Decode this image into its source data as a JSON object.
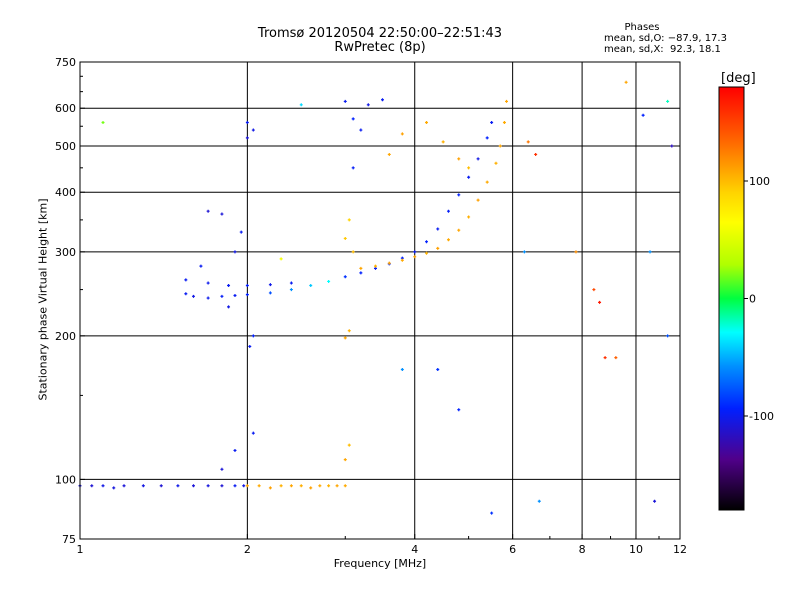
{
  "chart_data": {
    "type": "scatter",
    "title": "Tromsø 20120504 22:50:00–22:51:43",
    "subtitle": "RwPretec (8p)",
    "xlabel": "Frequency [MHz]",
    "ylabel": "Stationary phase Virtual Height [km]",
    "x_scale": "log",
    "y_scale": "log",
    "xlim": [
      1,
      12
    ],
    "ylim": [
      75,
      750
    ],
    "x_ticks": [
      {
        "v": 1,
        "label": "1"
      },
      {
        "v": 2,
        "label": "2"
      },
      {
        "v": 4,
        "label": "4"
      },
      {
        "v": 6,
        "label": "6"
      },
      {
        "v": 8,
        "label": "8"
      },
      {
        "v": 10,
        "label": "10"
      },
      {
        "v": 12,
        "label": "12"
      }
    ],
    "x_grid": [
      2,
      4,
      6,
      8,
      10
    ],
    "y_ticks": [
      {
        "v": 75,
        "label": "75"
      },
      {
        "v": 100,
        "label": "100"
      },
      {
        "v": 200,
        "label": "200"
      },
      {
        "v": 300,
        "label": "300"
      },
      {
        "v": 400,
        "label": "400"
      },
      {
        "v": 500,
        "label": "500"
      },
      {
        "v": 600,
        "label": "600"
      },
      {
        "v": 750,
        "label": "750"
      }
    ],
    "y_grid": [
      100,
      200,
      300,
      400,
      500,
      600
    ],
    "grid": true,
    "phases_box": {
      "heading": "Phases",
      "line1": "mean, sd,O: −87.9, 17.3",
      "line2": "mean, sd,X:  92.3, 18.1"
    },
    "colorbar": {
      "label": "[deg]",
      "vmin": -180,
      "vmax": 180,
      "ticks": [
        {
          "v": 100,
          "label": "100"
        },
        {
          "v": 0,
          "label": "0"
        },
        {
          "v": -100,
          "label": "-100"
        }
      ],
      "colormap": "rainbow"
    },
    "series": [
      {
        "role": "E-layer O trace",
        "points": [
          [
            1.0,
            97,
            -110
          ],
          [
            1.05,
            97,
            -112
          ],
          [
            1.1,
            97,
            -105
          ],
          [
            1.15,
            96,
            -108
          ],
          [
            1.2,
            97,
            -110
          ],
          [
            1.3,
            97,
            -106
          ],
          [
            1.4,
            97,
            -112
          ],
          [
            1.5,
            97,
            -104
          ],
          [
            1.6,
            97,
            -110
          ],
          [
            1.7,
            97,
            -108
          ],
          [
            1.8,
            97,
            -112
          ],
          [
            1.9,
            97,
            -100
          ],
          [
            1.97,
            97,
            -105
          ]
        ]
      },
      {
        "role": "E-layer X trace",
        "points": [
          [
            2.0,
            97,
            110
          ],
          [
            2.1,
            97,
            108
          ],
          [
            2.2,
            96,
            112
          ],
          [
            2.3,
            97,
            105
          ],
          [
            2.4,
            97,
            110
          ],
          [
            2.5,
            97,
            106
          ],
          [
            2.6,
            96,
            112
          ],
          [
            2.7,
            97,
            108
          ],
          [
            2.8,
            97,
            104
          ],
          [
            2.9,
            97,
            110
          ],
          [
            3.0,
            97,
            108
          ]
        ]
      },
      {
        "role": "F-layer O trace",
        "points": [
          [
            1.55,
            245,
            -100
          ],
          [
            1.6,
            242,
            -105
          ],
          [
            1.7,
            240,
            -102
          ],
          [
            1.8,
            242,
            -98
          ],
          [
            1.9,
            243,
            -100
          ],
          [
            2.0,
            244,
            -95
          ],
          [
            2.2,
            246,
            -80
          ],
          [
            2.4,
            250,
            -60
          ],
          [
            2.6,
            255,
            -45
          ],
          [
            2.8,
            260,
            -30
          ],
          [
            3.0,
            266,
            -90
          ],
          [
            3.2,
            271,
            -95
          ],
          [
            3.4,
            277,
            -100
          ],
          [
            3.6,
            283,
            -92
          ],
          [
            3.8,
            291,
            -95
          ],
          [
            4.0,
            300,
            -100
          ],
          [
            4.2,
            315,
            -95
          ],
          [
            4.4,
            335,
            -100
          ],
          [
            4.6,
            365,
            -98
          ],
          [
            4.8,
            395,
            -95
          ],
          [
            5.0,
            430,
            -100
          ],
          [
            5.2,
            470,
            -105
          ],
          [
            5.4,
            520,
            -95
          ],
          [
            5.5,
            560,
            -100
          ]
        ]
      },
      {
        "role": "F-layer upper O trace",
        "points": [
          [
            1.55,
            262,
            -100
          ],
          [
            1.7,
            258,
            -102
          ],
          [
            1.85,
            255,
            -100
          ],
          [
            2.0,
            255,
            -98
          ],
          [
            2.2,
            256,
            -104
          ],
          [
            2.4,
            258,
            -100
          ]
        ]
      },
      {
        "role": "F-layer X trace",
        "points": [
          [
            3.2,
            277,
            110
          ],
          [
            3.4,
            280,
            105
          ],
          [
            3.6,
            284,
            112
          ],
          [
            3.8,
            288,
            108
          ],
          [
            4.0,
            293,
            110
          ],
          [
            4.2,
            298,
            104
          ],
          [
            4.4,
            305,
            112
          ],
          [
            4.6,
            318,
            108
          ],
          [
            4.8,
            333,
            110
          ],
          [
            5.0,
            355,
            106
          ],
          [
            5.2,
            385,
            112
          ],
          [
            5.4,
            420,
            108
          ],
          [
            5.6,
            460,
            105
          ],
          [
            5.7,
            500,
            110
          ],
          [
            5.8,
            560,
            108
          ],
          [
            5.85,
            620,
            110
          ]
        ]
      },
      {
        "role": "spread patches O",
        "points": [
          [
            2.0,
            560,
            -100
          ],
          [
            2.05,
            540,
            -105
          ],
          [
            2.0,
            520,
            -110
          ],
          [
            2.02,
            190,
            -100
          ],
          [
            2.05,
            200,
            -95
          ],
          [
            1.9,
            300,
            -105
          ],
          [
            1.95,
            330,
            -100
          ],
          [
            1.8,
            360,
            -110
          ],
          [
            1.7,
            365,
            -112
          ],
          [
            1.65,
            280,
            -100
          ],
          [
            1.85,
            230,
            -105
          ],
          [
            2.05,
            125,
            -100
          ],
          [
            1.9,
            115,
            -100
          ],
          [
            1.8,
            105,
            -110
          ],
          [
            3.0,
            620,
            -100
          ],
          [
            3.1,
            570,
            -95
          ],
          [
            3.2,
            540,
            -100
          ],
          [
            3.3,
            610,
            -105
          ],
          [
            3.5,
            625,
            -100
          ],
          [
            3.1,
            450,
            -98
          ]
        ]
      },
      {
        "role": "spread patches X",
        "points": [
          [
            3.0,
            320,
            95
          ],
          [
            3.05,
            350,
            90
          ],
          [
            3.1,
            300,
            100
          ],
          [
            3.0,
            198,
            110
          ],
          [
            3.05,
            205,
            105
          ],
          [
            3.05,
            118,
            100
          ],
          [
            3.0,
            110,
            110
          ],
          [
            3.6,
            480,
            110
          ],
          [
            3.8,
            530,
            112
          ],
          [
            4.2,
            560,
            108
          ],
          [
            4.5,
            510,
            105
          ],
          [
            4.8,
            470,
            112
          ],
          [
            5.0,
            450,
            100
          ]
        ]
      },
      {
        "role": "scattered noise",
        "points": [
          [
            1.1,
            560,
            20
          ],
          [
            2.3,
            290,
            60
          ],
          [
            2.5,
            610,
            -40
          ],
          [
            3.8,
            170,
            -60
          ],
          [
            4.4,
            170,
            -90
          ],
          [
            4.8,
            140,
            -95
          ],
          [
            5.5,
            85,
            -90
          ],
          [
            6.7,
            90,
            -60
          ],
          [
            7.8,
            300,
            120
          ],
          [
            8.4,
            250,
            150
          ],
          [
            8.6,
            235,
            170
          ],
          [
            8.8,
            180,
            160
          ],
          [
            9.2,
            180,
            140
          ],
          [
            9.6,
            680,
            110
          ],
          [
            10.3,
            580,
            -95
          ],
          [
            10.6,
            300,
            -60
          ],
          [
            10.8,
            90,
            -110
          ],
          [
            11.4,
            620,
            -20
          ],
          [
            11.6,
            500,
            -120
          ],
          [
            11.4,
            200,
            -80
          ],
          [
            6.4,
            510,
            130
          ],
          [
            6.6,
            480,
            160
          ],
          [
            6.3,
            300,
            -60
          ]
        ]
      }
    ]
  }
}
